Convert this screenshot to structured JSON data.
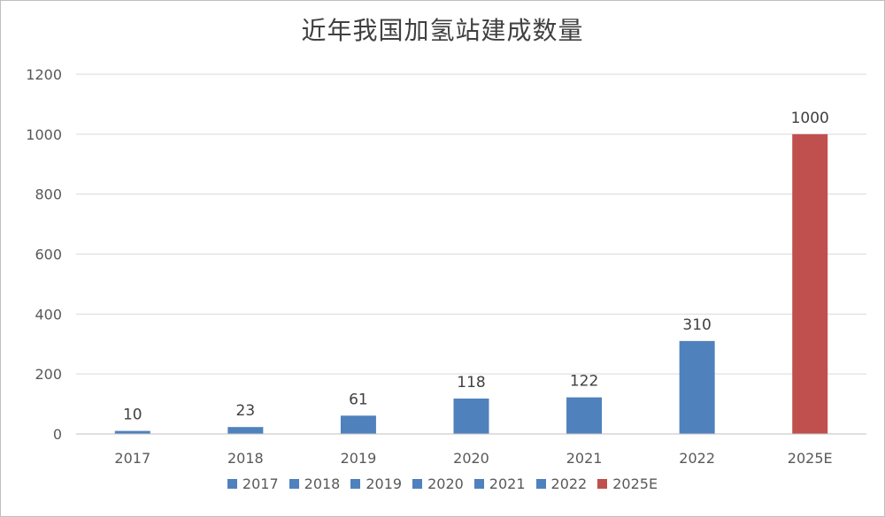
{
  "chart_data": {
    "type": "bar",
    "title": "近年我国加氢站建成数量",
    "categories": [
      "2017",
      "2018",
      "2019",
      "2020",
      "2021",
      "2022",
      "2025E"
    ],
    "values": [
      10,
      23,
      61,
      118,
      122,
      310,
      1000
    ],
    "colors": [
      "#4f81bd",
      "#4f81bd",
      "#4f81bd",
      "#4f81bd",
      "#4f81bd",
      "#4f81bd",
      "#c0504d"
    ],
    "ylim": [
      0,
      1200
    ],
    "yticks": [
      0,
      200,
      400,
      600,
      800,
      1000,
      1200
    ],
    "xlabel": "",
    "ylabel": "",
    "grid": true,
    "legend_position": "bottom",
    "legend": [
      "2017",
      "2018",
      "2019",
      "2020",
      "2021",
      "2022",
      "2025E"
    ]
  }
}
